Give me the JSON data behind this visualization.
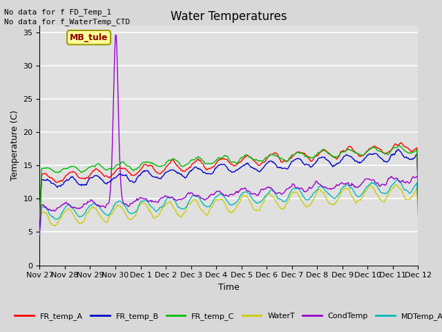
{
  "title": "Water Temperatures",
  "ylabel": "Temperature (C)",
  "xlabel": "Time",
  "ylim": [
    0,
    36
  ],
  "yticks": [
    0,
    5,
    10,
    15,
    20,
    25,
    30,
    35
  ],
  "background_color": "#d8d8d8",
  "plot_bg_color": "#e0e0e0",
  "grid_color": "#ffffff",
  "annotations": [
    "No data for f FD_Temp_1",
    "No data for f_WaterTemp_CTD"
  ],
  "legend_label": "MB_tule",
  "series": {
    "FR_temp_A": {
      "color": "#ff0000",
      "lw": 1.0
    },
    "FR_temp_B": {
      "color": "#0000cc",
      "lw": 1.0
    },
    "FR_temp_C": {
      "color": "#00bb00",
      "lw": 1.0
    },
    "WaterT": {
      "color": "#cccc00",
      "lw": 1.0
    },
    "CondTemp": {
      "color": "#9900cc",
      "lw": 1.0
    },
    "MDTemp_A": {
      "color": "#00bbbb",
      "lw": 1.0
    }
  },
  "x_tick_labels": [
    "Nov 27",
    "Nov 28",
    "Nov 29",
    "Nov 30",
    "Dec 1",
    "Dec 2",
    "Dec 3",
    "Dec 4",
    "Dec 5",
    "Dec 6",
    "Dec 7",
    "Dec 8",
    "Dec 9",
    "Dec 10",
    "Dec 11",
    "Dec 12"
  ],
  "n_days": 15,
  "n_points": 600,
  "seed": 42
}
